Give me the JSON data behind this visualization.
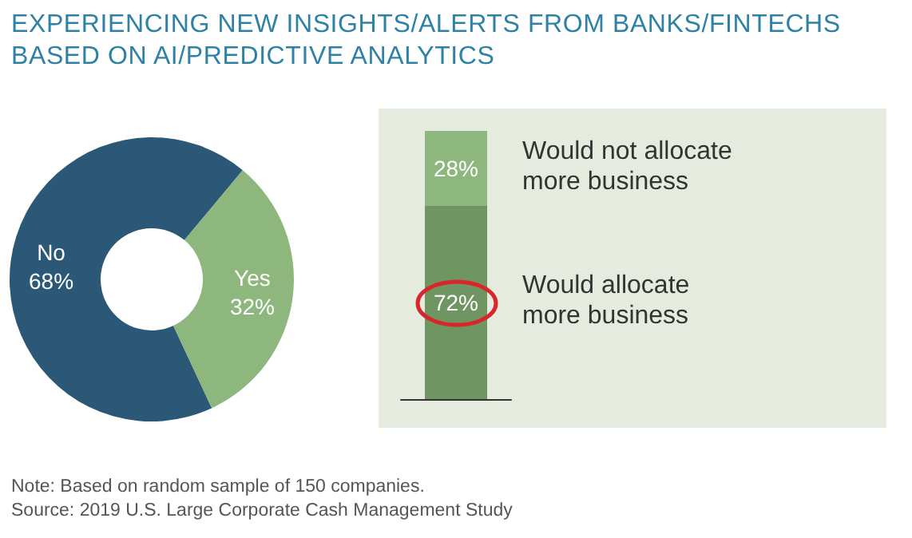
{
  "chart_data": [
    {
      "type": "donut",
      "title": "EXPERIENCING NEW INSIGHTS/ALERTS FROM BANKS/FINTECHS BASED ON AI/PREDICTIVE ANALYTICS",
      "categories": [
        "No",
        "Yes"
      ],
      "values": [
        68,
        32
      ],
      "colors": [
        "#2b5877",
        "#8db77d"
      ],
      "value_labels": [
        "68%",
        "32%"
      ],
      "legend": false,
      "annotations": [
        "Note: Based on random sample of 150 companies.",
        "Source: 2019 U.S. Large Corporate Cash Management Study"
      ]
    },
    {
      "type": "bar",
      "stacked": true,
      "categories": [
        null
      ],
      "legend": "right",
      "series": [
        {
          "name": "Would allocate more business",
          "color": "#6f9562",
          "values": [
            72
          ],
          "value_labels": [
            "72%"
          ]
        },
        {
          "name": "Would not allocate more business",
          "color": "#8db77d",
          "values": [
            28
          ],
          "value_labels": [
            "28%"
          ]
        }
      ]
    }
  ]
}
